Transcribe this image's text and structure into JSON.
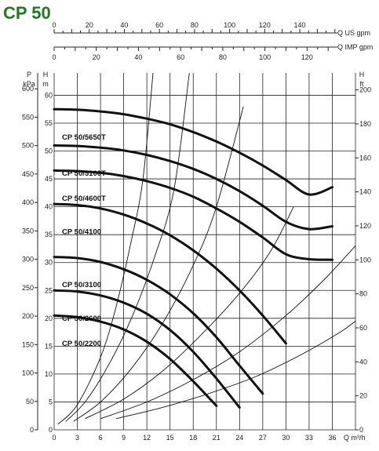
{
  "chart_data": {
    "type": "line",
    "title": "CP 50",
    "top_axes": [
      {
        "label": "Q US gpm",
        "ticks": [
          "0",
          "20",
          "40",
          "60",
          "80",
          "100",
          "120",
          "140"
        ],
        "values": [
          0,
          20,
          40,
          60,
          80,
          100,
          120,
          140
        ]
      },
      {
        "label": "Q IMP gpm",
        "ticks": [
          "0",
          "20",
          "40",
          "60",
          "80",
          "100",
          "120"
        ],
        "values": [
          0,
          20,
          40,
          60,
          80,
          100,
          120
        ]
      }
    ],
    "xaxis": {
      "label": "Q m³/h",
      "ticks": [
        "0",
        "3",
        "6",
        "9",
        "12",
        "15",
        "18",
        "21",
        "24",
        "27",
        "30",
        "33",
        "36"
      ],
      "xlim": [
        0,
        39
      ]
    },
    "left_axes": [
      {
        "label_top": "P",
        "label_bottom": "kPa",
        "ticks": [
          "0",
          "50",
          "100",
          "150",
          "200",
          "250",
          "300",
          "350",
          "400",
          "450",
          "500",
          "550",
          "600"
        ]
      },
      {
        "label_top": "H",
        "label_bottom": "m",
        "ticks": [
          "0",
          "5",
          "10",
          "15",
          "20",
          "25",
          "30",
          "35",
          "40",
          "45",
          "50",
          "55",
          "60"
        ]
      }
    ],
    "right_axis": {
      "label_top": "H",
      "label_bottom": "ft",
      "ticks": [
        "0",
        "20",
        "40",
        "60",
        "80",
        "100",
        "120",
        "140",
        "160",
        "180",
        "200"
      ]
    },
    "ylim": [
      0,
      64
    ],
    "grid": true,
    "series": [
      {
        "name": "CP 50/5650T",
        "x": [
          0,
          3,
          6,
          9,
          12,
          15,
          18,
          21,
          24,
          27,
          30,
          33,
          36
        ],
        "y": [
          57.5,
          57.4,
          57.1,
          56.6,
          55.8,
          54.8,
          53.4,
          51.7,
          49.7,
          47.4,
          44.8,
          42.2,
          43.5
        ]
      },
      {
        "name": "CP 50/5100T",
        "x": [
          0,
          3,
          6,
          9,
          12,
          15,
          18,
          21,
          24,
          27,
          30,
          33,
          36
        ],
        "y": [
          51,
          50.9,
          50.6,
          50.1,
          49.3,
          48.2,
          46.8,
          45,
          42.8,
          40.2,
          37.3,
          36,
          36.5
        ]
      },
      {
        "name": "CP 50/4600T",
        "x": [
          0,
          3,
          6,
          9,
          12,
          15,
          18,
          21,
          24,
          27,
          30,
          33,
          36
        ],
        "y": [
          46.5,
          46.4,
          46.1,
          45.5,
          44.6,
          43.4,
          41.8,
          39.7,
          37.3,
          34.5,
          31.5,
          30.6,
          30.5
        ]
      },
      {
        "name": "CP 50/4100",
        "x": [
          0,
          3,
          6,
          9,
          12,
          15,
          18,
          21,
          24,
          27,
          30
        ],
        "y": [
          40.5,
          40.3,
          39.7,
          38.6,
          37,
          34.9,
          32.2,
          28.9,
          25,
          20.5,
          15.5
        ]
      },
      {
        "name": "CP 50/3100",
        "x": [
          0,
          3,
          6,
          9,
          12,
          15,
          18,
          21,
          24,
          27
        ],
        "y": [
          31,
          30.8,
          30.1,
          28.8,
          26.9,
          24.3,
          20.9,
          16.6,
          11.5,
          6.5
        ]
      },
      {
        "name": "CP 50/2600",
        "x": [
          0,
          3,
          6,
          9,
          12,
          15,
          18,
          21,
          24
        ],
        "y": [
          25,
          24.8,
          24.1,
          22.8,
          20.8,
          17.9,
          14,
          9.2,
          4
        ]
      },
      {
        "name": "CP 50/2200",
        "x": [
          0,
          3,
          6,
          9,
          12,
          15,
          18,
          21
        ],
        "y": [
          20.5,
          20.2,
          19.4,
          18,
          15.8,
          12.7,
          8.7,
          4.3
        ]
      }
    ],
    "system_curves": [
      {
        "x": [
          0.5,
          3,
          6,
          8,
          10,
          11.5,
          12.8
        ],
        "y": [
          1,
          4.5,
          13,
          22,
          34,
          45,
          64
        ]
      },
      {
        "x": [
          1.5,
          4,
          7,
          10,
          13,
          15.5,
          17.5
        ],
        "y": [
          1.5,
          5,
          11.5,
          20,
          31,
          43,
          64
        ]
      },
      {
        "x": [
          2.5,
          6,
          10,
          14,
          18,
          21,
          24.5
        ],
        "y": [
          1.5,
          5,
          11,
          19,
          29.5,
          40,
          58
        ]
      },
      {
        "x": [
          4,
          9,
          14,
          19,
          24,
          28,
          31
        ],
        "y": [
          2,
          5.5,
          10.5,
          17,
          24.5,
          32,
          40
        ]
      },
      {
        "x": [
          6,
          12,
          18,
          24,
          30,
          35,
          39
        ],
        "y": [
          2,
          5,
          9,
          14,
          20.5,
          27,
          33
        ]
      },
      {
        "x": [
          8,
          14,
          20,
          26,
          32,
          37,
          39
        ],
        "y": [
          2,
          4,
          6.5,
          9.5,
          13.5,
          17.5,
          19.5
        ]
      }
    ]
  }
}
